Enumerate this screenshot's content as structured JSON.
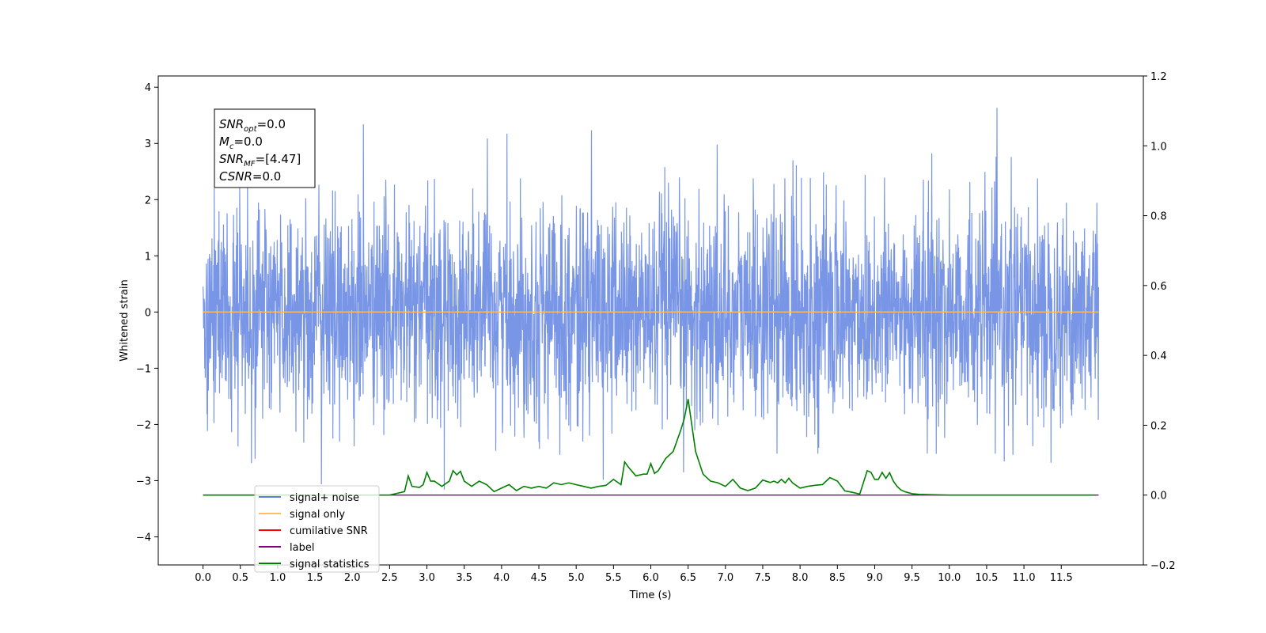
{
  "chart_data": {
    "type": "line",
    "xlabel": "Time (s)",
    "ylabel": "Whitened strain",
    "xlim": [
      -0.6,
      12.6
    ],
    "ylim": [
      -4.5,
      4.2
    ],
    "y2lim": [
      -0.2,
      1.2
    ],
    "x_ticks": [
      "0.0",
      "0.5",
      "1.0",
      "1.5",
      "2.0",
      "2.5",
      "3.0",
      "3.5",
      "4.0",
      "4.5",
      "5.0",
      "5.5",
      "6.0",
      "6.5",
      "7.0",
      "7.5",
      "8.0",
      "8.5",
      "9.0",
      "9.5",
      "10.0",
      "10.5",
      "11.0",
      "11.5"
    ],
    "y_ticks": [
      "4",
      "3",
      "2",
      "1",
      "0",
      "−1",
      "−2",
      "−3",
      "−4"
    ],
    "y2_ticks": [
      "1.2",
      "1.0",
      "0.8",
      "0.6",
      "0.4",
      "0.2",
      "0.0",
      "−0.2"
    ],
    "grid": false,
    "legend_position": "lower-left",
    "annotation": {
      "lines": [
        {
          "sym": "SNR",
          "sub": "opt",
          "val": "=0.0"
        },
        {
          "sym": "M",
          "sub": "c",
          "val": "=0.0"
        },
        {
          "sym": "SNR",
          "sub": "MF",
          "val": "=[4.47]"
        },
        {
          "sym": "CSNR",
          "sub": "",
          "val": "=0.0"
        }
      ]
    },
    "series": [
      {
        "name": "signal+ noise",
        "color": "#5a7ee0",
        "axis": "left",
        "kind": "noise",
        "x_range": [
          0.0,
          12.0
        ],
        "amplitude_std": 1.0
      },
      {
        "name": "signal only",
        "color": "#ffbf60",
        "axis": "left",
        "x": [
          0.0,
          12.0
        ],
        "y": [
          0.0,
          0.0
        ]
      },
      {
        "name": "cumilative SNR",
        "color": "#ff0000",
        "axis": "right",
        "x": [],
        "y": []
      },
      {
        "name": "label",
        "color": "#800080",
        "axis": "right",
        "x": [
          0.0,
          12.0
        ],
        "y": [
          0.0,
          0.0
        ]
      },
      {
        "name": "signal statistics",
        "color": "#008000",
        "axis": "right",
        "x": [
          0.0,
          0.5,
          1.0,
          1.5,
          2.0,
          2.5,
          2.6,
          2.7,
          2.75,
          2.8,
          2.9,
          2.95,
          3.0,
          3.05,
          3.1,
          3.2,
          3.3,
          3.35,
          3.4,
          3.45,
          3.5,
          3.6,
          3.7,
          3.8,
          3.9,
          4.0,
          4.1,
          4.2,
          4.3,
          4.4,
          4.5,
          4.6,
          4.7,
          4.8,
          4.9,
          5.0,
          5.1,
          5.2,
          5.3,
          5.4,
          5.5,
          5.6,
          5.65,
          5.7,
          5.8,
          5.9,
          5.95,
          6.0,
          6.05,
          6.1,
          6.2,
          6.3,
          6.4,
          6.45,
          6.5,
          6.55,
          6.6,
          6.7,
          6.8,
          6.9,
          7.0,
          7.1,
          7.2,
          7.3,
          7.4,
          7.5,
          7.6,
          7.65,
          7.7,
          7.75,
          7.8,
          7.85,
          7.9,
          8.0,
          8.1,
          8.2,
          8.3,
          8.4,
          8.5,
          8.6,
          8.7,
          8.8,
          8.9,
          8.95,
          9.0,
          9.05,
          9.1,
          9.15,
          9.2,
          9.25,
          9.3,
          9.35,
          9.4,
          9.5,
          9.6,
          9.8,
          10.0,
          11.0,
          11.95
        ],
        "y": [
          0.0,
          0.0,
          0.0,
          0.0,
          0.0,
          0.0,
          0.005,
          0.01,
          0.055,
          0.025,
          0.022,
          0.03,
          0.065,
          0.04,
          0.04,
          0.025,
          0.04,
          0.07,
          0.058,
          0.068,
          0.04,
          0.025,
          0.04,
          0.03,
          0.01,
          0.02,
          0.03,
          0.013,
          0.025,
          0.02,
          0.025,
          0.02,
          0.035,
          0.03,
          0.035,
          0.03,
          0.025,
          0.02,
          0.025,
          0.028,
          0.045,
          0.03,
          0.095,
          0.08,
          0.055,
          0.06,
          0.06,
          0.09,
          0.062,
          0.07,
          0.105,
          0.125,
          0.185,
          0.22,
          0.275,
          0.2,
          0.125,
          0.06,
          0.04,
          0.035,
          0.025,
          0.045,
          0.02,
          0.013,
          0.02,
          0.043,
          0.036,
          0.04,
          0.035,
          0.045,
          0.035,
          0.048,
          0.035,
          0.02,
          0.025,
          0.028,
          0.03,
          0.05,
          0.04,
          0.012,
          0.008,
          0.003,
          0.07,
          0.065,
          0.045,
          0.045,
          0.065,
          0.048,
          0.064,
          0.04,
          0.025,
          0.015,
          0.01,
          0.004,
          0.002,
          0.001,
          0.0,
          0.0,
          0.0
        ]
      }
    ]
  }
}
